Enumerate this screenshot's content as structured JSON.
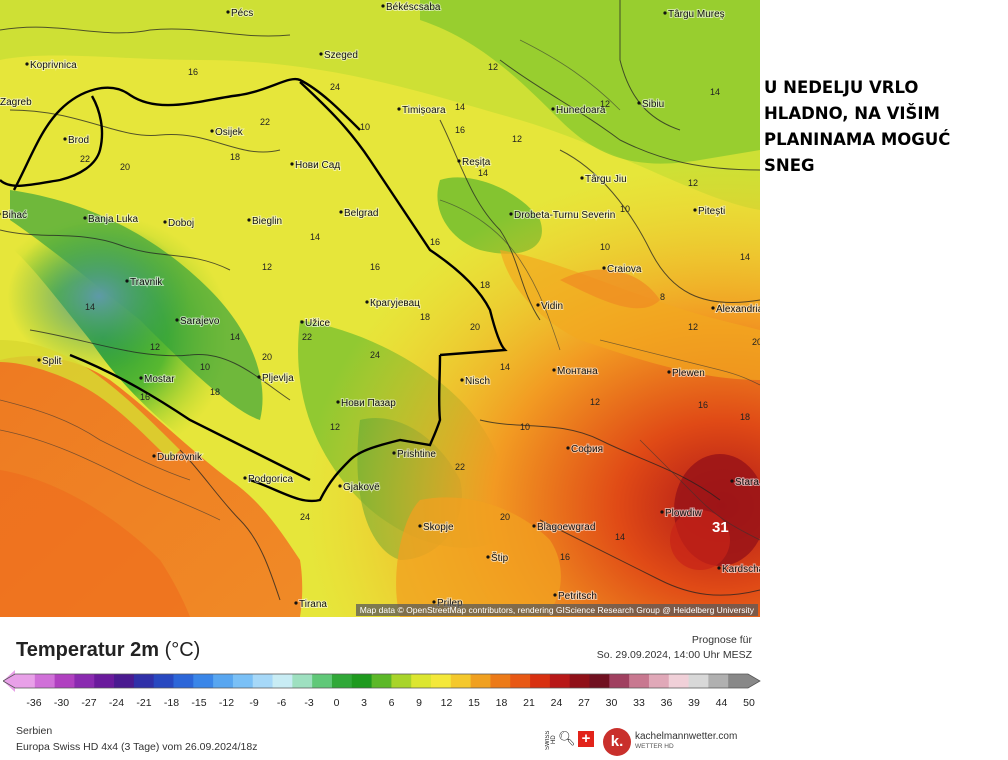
{
  "headline": "U NEDELJU VRLO\nHLADNO, NA VIŠIM\nPLANINAMA MOGUĆ\nSNEG",
  "map": {
    "attribution": "Map data © OpenStreetMap contributors, rendering GIScience Research Group @ Heidelberg University",
    "peak_value": "31",
    "places": [
      {
        "name": "Pécs"
      },
      {
        "name": "Szeged"
      },
      {
        "name": "Békéscsaba"
      },
      {
        "name": "Koprivnica"
      },
      {
        "name": "Zagreb"
      },
      {
        "name": "Osijek"
      },
      {
        "name": "Нови Сад"
      },
      {
        "name": "Timișoara"
      },
      {
        "name": "Hunedoara"
      },
      {
        "name": "Sibiu"
      },
      {
        "name": "Târgu Mureș"
      },
      {
        "name": "Brod"
      },
      {
        "name": "Banja Luka"
      },
      {
        "name": "Doboj"
      },
      {
        "name": "Bieglin"
      },
      {
        "name": "Belgrad"
      },
      {
        "name": "Reșița"
      },
      {
        "name": "Drobeta-Turnu Severin"
      },
      {
        "name": "Târgu Jiu"
      },
      {
        "name": "Pitești"
      },
      {
        "name": "Travnik"
      },
      {
        "name": "Bihać"
      },
      {
        "name": "Крагујевац"
      },
      {
        "name": "Craiova"
      },
      {
        "name": "Vidin"
      },
      {
        "name": "Alexandria"
      },
      {
        "name": "Sarajevo"
      },
      {
        "name": "Užice"
      },
      {
        "name": "Split"
      },
      {
        "name": "Mostar"
      },
      {
        "name": "Pljevlja"
      },
      {
        "name": "Nisch"
      },
      {
        "name": "Монтана"
      },
      {
        "name": "Plewen"
      },
      {
        "name": "Нови Пазар"
      },
      {
        "name": "Dubrovnik"
      },
      {
        "name": "Prishtine"
      },
      {
        "name": "София"
      },
      {
        "name": "Podgorica"
      },
      {
        "name": "Gjakovë"
      },
      {
        "name": "Skopje"
      },
      {
        "name": "Blagoewgrad"
      },
      {
        "name": "Plowdiw"
      },
      {
        "name": "Stara Zagora"
      },
      {
        "name": "Štip"
      },
      {
        "name": "Tirana"
      },
      {
        "name": "Prilep"
      },
      {
        "name": "Petritsch"
      },
      {
        "name": "Kardschali"
      }
    ],
    "values": [
      "12",
      "14",
      "12",
      "16",
      "14",
      "12",
      "10",
      "12",
      "14",
      "16",
      "18",
      "10",
      "8",
      "12",
      "14",
      "20",
      "22",
      "16",
      "18",
      "20",
      "22",
      "24",
      "10",
      "12",
      "14",
      "16",
      "18",
      "20",
      "14",
      "10",
      "12",
      "14",
      "16",
      "18",
      "20",
      "22",
      "24",
      "14",
      "12",
      "16",
      "18",
      "20",
      "22",
      "24",
      "12",
      "10",
      "14",
      "16"
    ]
  },
  "legend": {
    "title": "Temperatur 2m",
    "unit": "(°C)",
    "prognose_label": "Prognose für",
    "prognose_date": "So. 29.09.2024, 14:00 Uhr MESZ",
    "region": "Serbien",
    "model": "Europa Swiss HD 4x4 (3 Tage) vom 26.09.2024/18z",
    "tick_labels": [
      "-36",
      "-30",
      "-27",
      "-24",
      "-21",
      "-18",
      "-15",
      "-12",
      "-9",
      "-6",
      "-3",
      "0",
      "3",
      "6",
      "9",
      "12",
      "15",
      "18",
      "21",
      "24",
      "27",
      "30",
      "33",
      "36",
      "39",
      "44",
      "50"
    ],
    "colors": [
      "#e8a0e8",
      "#d070d8",
      "#b040c0",
      "#8a2ab0",
      "#6a1a9c",
      "#4a1a90",
      "#3030a8",
      "#2848c0",
      "#2c66d8",
      "#3a86e8",
      "#58a6f0",
      "#7ac0f6",
      "#a6d8f8",
      "#c8ecf4",
      "#9ee0c0",
      "#60c878",
      "#30a838",
      "#1e9a1e",
      "#5cb828",
      "#a8d42a",
      "#dce630",
      "#f4e83a",
      "#f4c82c",
      "#f0a020",
      "#ec7a18",
      "#e85814",
      "#d83010",
      "#b81818",
      "#901018",
      "#701020",
      "#a04060",
      "#c87890",
      "#e0a8b8",
      "#f0d0d8",
      "#d8d8d8",
      "#b0b0b0",
      "#888888"
    ]
  },
  "logos": {
    "swiss_hd": "SWISS HD",
    "brand": "kachelmannwetter.com",
    "brand_sub": "WETTER HD",
    "k_letter": "k."
  }
}
